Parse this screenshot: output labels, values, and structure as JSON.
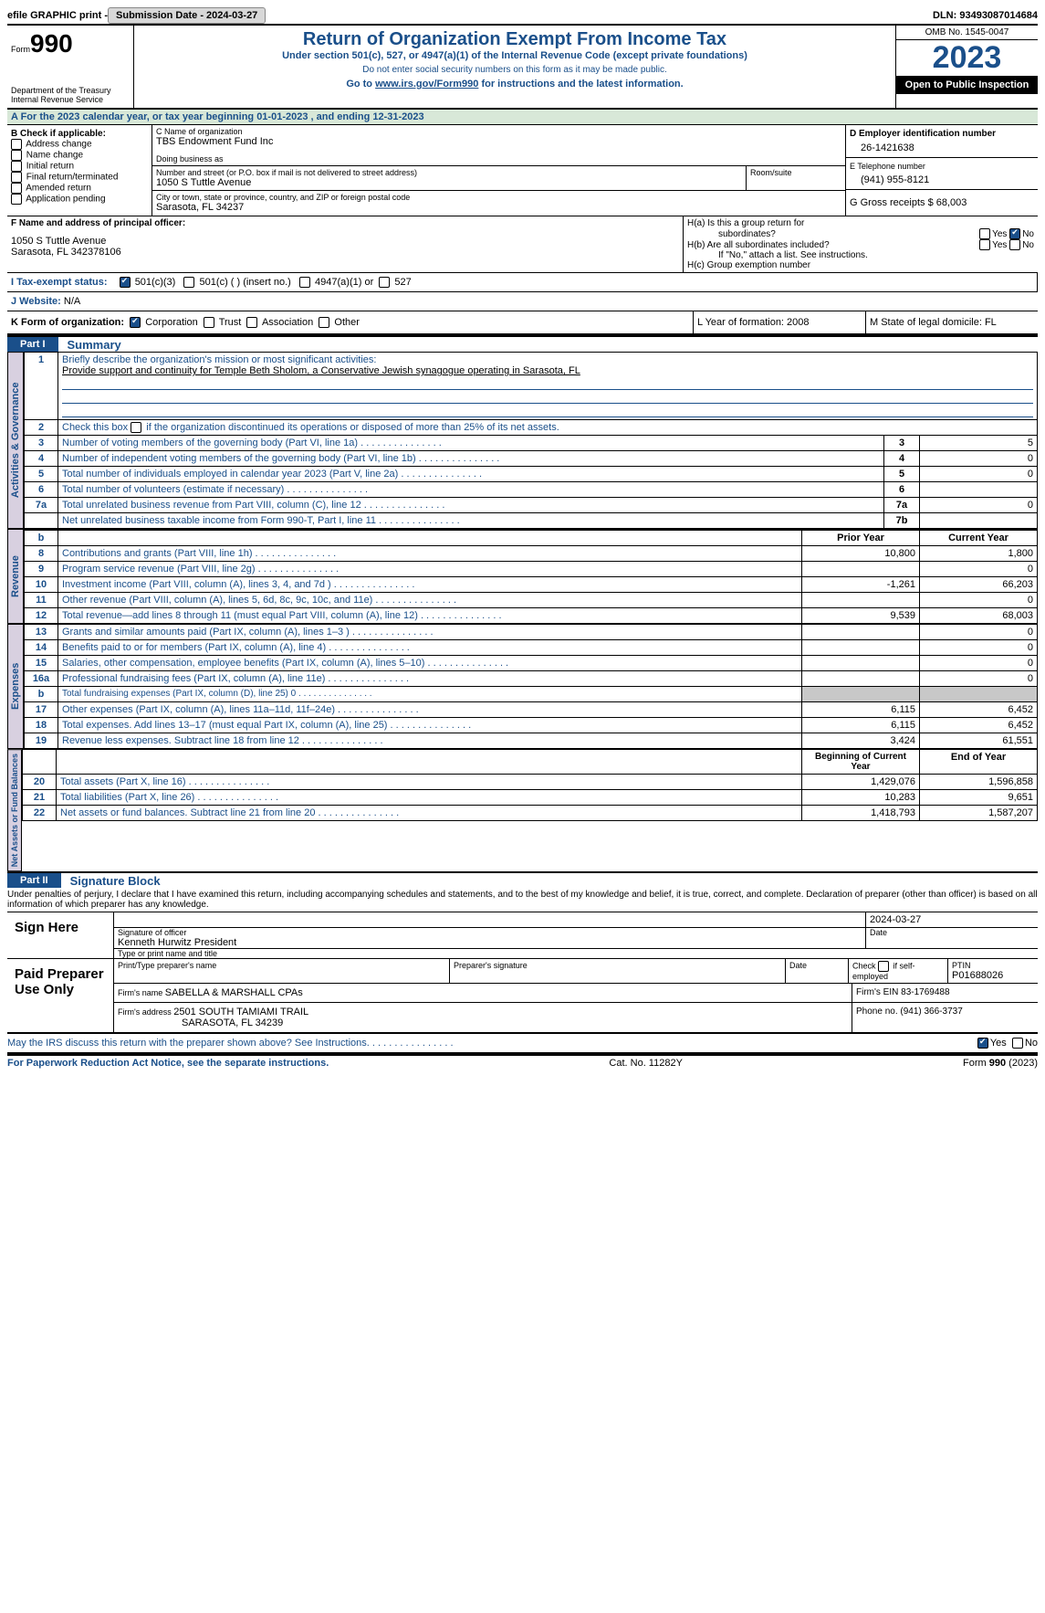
{
  "topbar": {
    "efile_label": "efile GRAPHIC print - ",
    "submit_btn": "Submission Date - 2024-03-27",
    "dln_label": "DLN: 93493087014684"
  },
  "header": {
    "form_prefix": "Form",
    "form_number": "990",
    "dept": "Department of the Treasury Internal Revenue Service",
    "title": "Return of Organization Exempt From Income Tax",
    "subtitle": "Under section 501(c), 527, or 4947(a)(1) of the Internal Revenue Code (except private foundations)",
    "privacy": "Do not enter social security numbers on this form as it may be made public.",
    "goto_prefix": "Go to ",
    "goto_link": "www.irs.gov/Form990",
    "goto_suffix": " for instructions and the latest information.",
    "omb": "OMB No. 1545-0047",
    "year": "2023",
    "inspection": "Open to Public Inspection"
  },
  "period": {
    "line": "A For the 2023 calendar year, or tax year beginning 01-01-2023   , and ending 12-31-2023"
  },
  "boxB": {
    "header": "B Check if applicable:",
    "opts": [
      "Address change",
      "Name change",
      "Initial return",
      "Final return/terminated",
      "Amended return",
      "Application pending"
    ]
  },
  "boxC": {
    "name_label": "C Name of organization",
    "name": "TBS Endowment Fund Inc",
    "dba_label": "Doing business as",
    "addr_label": "Number and street (or P.O. box if mail is not delivered to street address)",
    "addr": "1050 S Tuttle Avenue",
    "room_label": "Room/suite",
    "city_label": "City or town, state or province, country, and ZIP or foreign postal code",
    "city": "Sarasota, FL  34237"
  },
  "boxD": {
    "label": "D Employer identification number",
    "ein": "26-1421638"
  },
  "boxE": {
    "label": "E Telephone number",
    "phone": "(941) 955-8121"
  },
  "boxG": {
    "label": "G Gross receipts $ 68,003"
  },
  "boxF": {
    "label": "F  Name and address of principal officer:",
    "addr1": "1050 S Tuttle Avenue",
    "addr2": "Sarasota, FL  342378106"
  },
  "boxH": {
    "a": "H(a)  Is this a group return for",
    "a2": "subordinates?",
    "b": "H(b)  Are all subordinates included?",
    "b2": "If \"No,\" attach a list. See instructions.",
    "c": "H(c)  Group exemption number  "
  },
  "boxI": {
    "label": "I    Tax-exempt status:",
    "o1": "501(c)(3)",
    "o2": "501(c) (  ) (insert no.)",
    "o3": "4947(a)(1) or",
    "o4": "527"
  },
  "boxJ": {
    "label": "J    Website: ",
    "val": "N/A"
  },
  "boxK": {
    "label": "K Form of organization:",
    "o1": "Corporation",
    "o2": "Trust",
    "o3": "Association",
    "o4": "Other"
  },
  "boxL": {
    "label": "L Year of formation: 2008"
  },
  "boxM": {
    "label": "M State of legal domicile: FL"
  },
  "part1": {
    "tab": "Part I",
    "title": "Summary",
    "line1_label": "Briefly describe the organization's mission or most significant activities:",
    "line1_text": "Provide support and continuity for Temple Beth Sholom, a Conservative Jewish synagogue operating in Sarasota, FL",
    "line2": "Check this box        if the organization discontinued its operations or disposed of more than 25% of its net assets.",
    "rows_gov": [
      {
        "n": "3",
        "d": "Number of voting members of the governing body (Part VI, line 1a)",
        "b": "3",
        "v": "5"
      },
      {
        "n": "4",
        "d": "Number of independent voting members of the governing body (Part VI, line 1b)",
        "b": "4",
        "v": "0"
      },
      {
        "n": "5",
        "d": "Total number of individuals employed in calendar year 2023 (Part V, line 2a)",
        "b": "5",
        "v": "0"
      },
      {
        "n": "6",
        "d": "Total number of volunteers (estimate if necessary)",
        "b": "6",
        "v": ""
      },
      {
        "n": "7a",
        "d": "Total unrelated business revenue from Part VIII, column (C), line 12",
        "b": "7a",
        "v": "0"
      },
      {
        "n": "",
        "d": "Net unrelated business taxable income from Form 990-T, Part I, line 11",
        "b": "7b",
        "v": ""
      }
    ],
    "col_prior": "Prior Year",
    "col_current": "Current Year",
    "rows_rev": [
      {
        "n": "8",
        "d": "Contributions and grants (Part VIII, line 1h)",
        "p": "10,800",
        "c": "1,800"
      },
      {
        "n": "9",
        "d": "Program service revenue (Part VIII, line 2g)",
        "p": "",
        "c": "0"
      },
      {
        "n": "10",
        "d": "Investment income (Part VIII, column (A), lines 3, 4, and 7d )",
        "p": "-1,261",
        "c": "66,203"
      },
      {
        "n": "11",
        "d": "Other revenue (Part VIII, column (A), lines 5, 6d, 8c, 9c, 10c, and 11e)",
        "p": "",
        "c": "0"
      },
      {
        "n": "12",
        "d": "Total revenue—add lines 8 through 11 (must equal Part VIII, column (A), line 12)",
        "p": "9,539",
        "c": "68,003"
      }
    ],
    "rows_exp": [
      {
        "n": "13",
        "d": "Grants and similar amounts paid (Part IX, column (A), lines 1–3 )",
        "p": "",
        "c": "0"
      },
      {
        "n": "14",
        "d": "Benefits paid to or for members (Part IX, column (A), line 4)",
        "p": "",
        "c": "0"
      },
      {
        "n": "15",
        "d": "Salaries, other compensation, employee benefits (Part IX, column (A), lines 5–10)",
        "p": "",
        "c": "0"
      },
      {
        "n": "16a",
        "d": "Professional fundraising fees (Part IX, column (A), line 11e)",
        "p": "",
        "c": "0"
      },
      {
        "n": "b",
        "d": "Total fundraising expenses (Part IX, column (D), line 25) 0",
        "p": "GRAY",
        "c": "GRAY"
      },
      {
        "n": "17",
        "d": "Other expenses (Part IX, column (A), lines 11a–11d, 11f–24e)",
        "p": "6,115",
        "c": "6,452"
      },
      {
        "n": "18",
        "d": "Total expenses. Add lines 13–17 (must equal Part IX, column (A), line 25)",
        "p": "6,115",
        "c": "6,452"
      },
      {
        "n": "19",
        "d": "Revenue less expenses. Subtract line 18 from line 12",
        "p": "3,424",
        "c": "61,551"
      }
    ],
    "col_begin": "Beginning of Current Year",
    "col_end": "End of Year",
    "rows_net": [
      {
        "n": "20",
        "d": "Total assets (Part X, line 16)",
        "p": "1,429,076",
        "c": "1,596,858"
      },
      {
        "n": "21",
        "d": "Total liabilities (Part X, line 26)",
        "p": "10,283",
        "c": "9,651"
      },
      {
        "n": "22",
        "d": "Net assets or fund balances. Subtract line 21 from line 20",
        "p": "1,418,793",
        "c": "1,587,207"
      }
    ],
    "vlabels": {
      "gov": "Activities & Governance",
      "rev": "Revenue",
      "exp": "Expenses",
      "net": "Net Assets or Fund Balances"
    }
  },
  "part2": {
    "tab": "Part II",
    "title": "Signature Block",
    "declaration": "Under penalties of perjury, I declare that I have examined this return, including accompanying schedules and statements, and to the best of my knowledge and belief, it is true, correct, and complete. Declaration of preparer (other than officer) is based on all information of which preparer has any knowledge.",
    "sign_here": "Sign Here",
    "sig_officer": "Signature of officer",
    "officer_name": "Kenneth Hurwitz  President",
    "type_print": "Type or print name and title",
    "date": "Date",
    "sig_date": "2024-03-27",
    "paid": "Paid Preparer Use Only",
    "prep_name_label": "Print/Type preparer's name",
    "prep_sig_label": "Preparer's signature",
    "check_self": "Check         if self-employed",
    "ptin_label": "PTIN",
    "ptin": "P01688026",
    "firm_name_label": "Firm's name     ",
    "firm_name": "SABELLA & MARSHALL CPAs",
    "firm_ein_label": "Firm's EIN  83-1769488",
    "firm_addr_label": "Firm's address ",
    "firm_addr1": "2501 SOUTH TAMIAMI TRAIL",
    "firm_addr2": "SARASOTA, FL  34239",
    "phone_label": "Phone no. (941) 366-3737",
    "discuss": "May the IRS discuss this return with the preparer shown above? See Instructions."
  },
  "footer": {
    "left": "For Paperwork Reduction Act Notice, see the separate instructions.",
    "center": "Cat. No. 11282Y",
    "right": "Form 990 (2023)"
  },
  "yes": "Yes",
  "no": "No"
}
